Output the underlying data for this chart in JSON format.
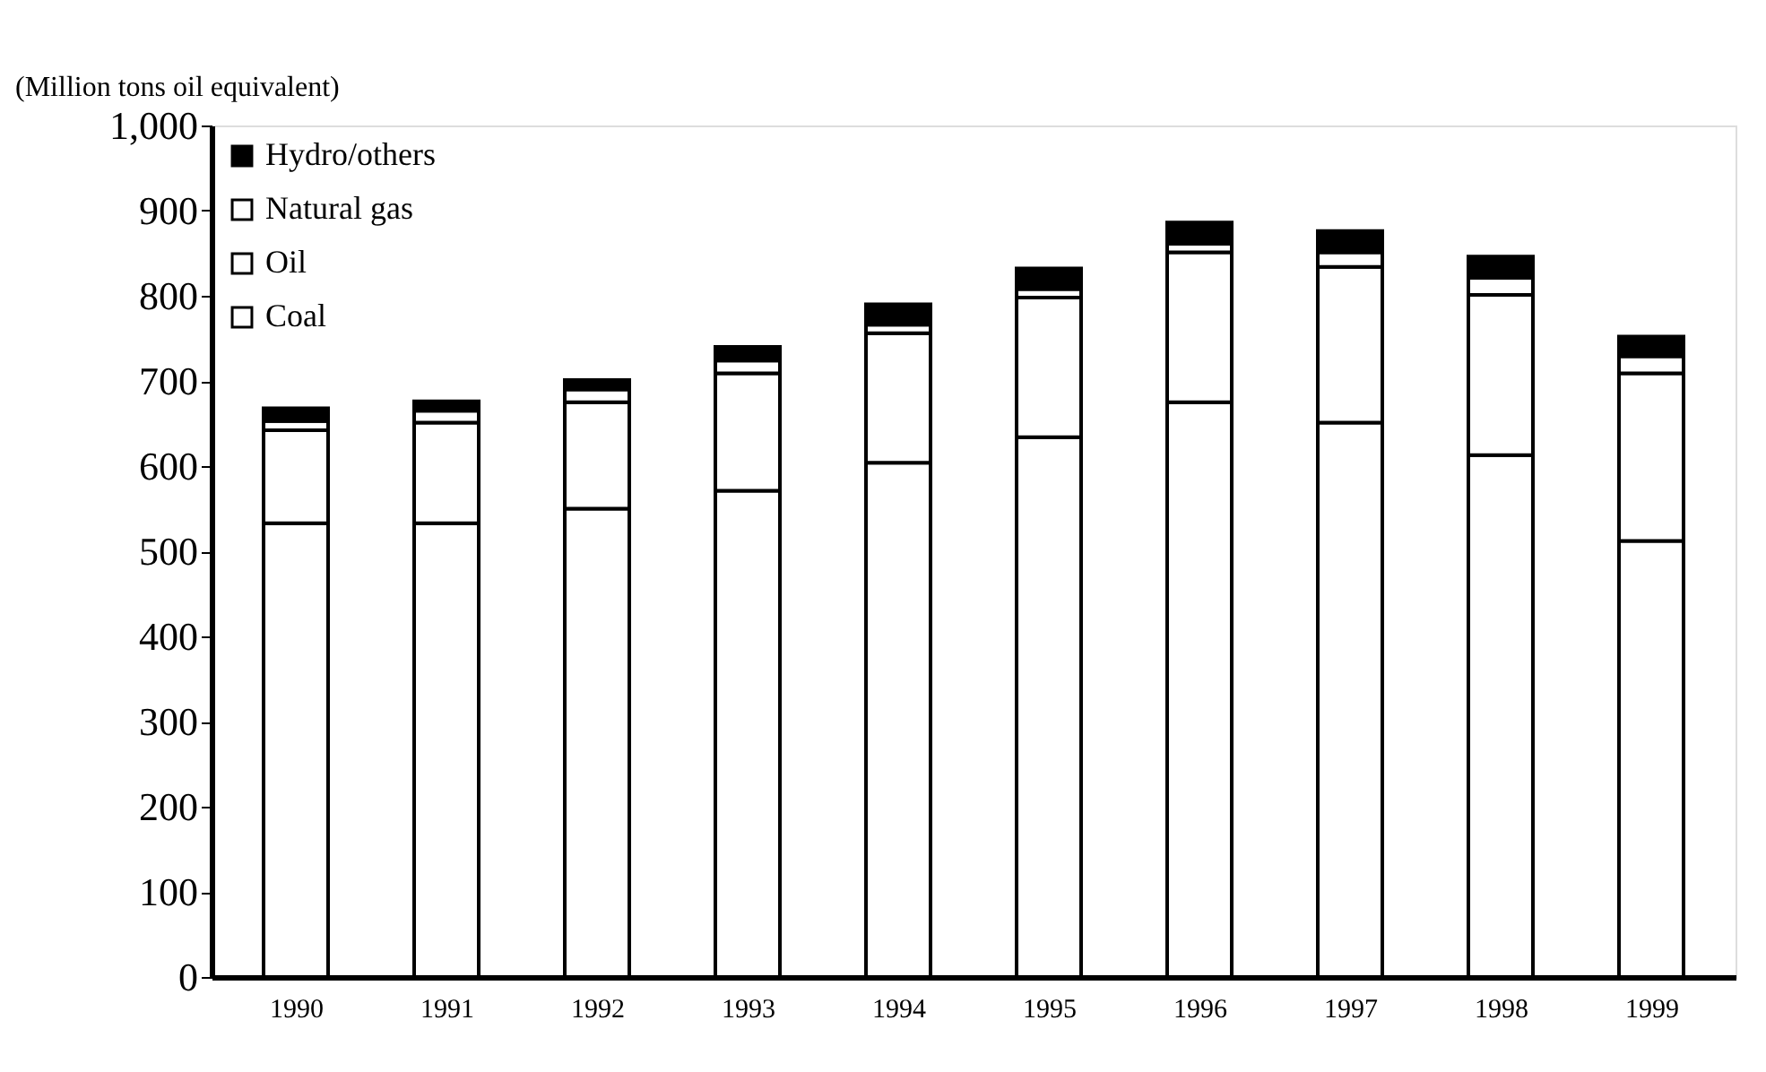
{
  "chart_data": {
    "type": "bar",
    "stacked": true,
    "ylabel": "(Million tons oil equivalent)",
    "categories": [
      "1990",
      "1991",
      "1992",
      "1993",
      "1994",
      "1995",
      "1996",
      "1997",
      "1998",
      "1999"
    ],
    "series": [
      {
        "name": "Coal",
        "color": "#ffffff",
        "values": [
          533,
          533,
          550,
          571,
          604,
          634,
          675,
          651,
          613,
          512
        ]
      },
      {
        "name": "Oil",
        "color": "#ffffff",
        "values": [
          109,
          118,
          125,
          138,
          152,
          164,
          176,
          183,
          188,
          197
        ]
      },
      {
        "name": "Natural gas",
        "color": "#ffffff",
        "values": [
          11,
          14,
          15,
          15,
          10,
          10,
          10,
          17,
          20,
          20
        ]
      },
      {
        "name": "Hydro/others",
        "color": "#000000",
        "values": [
          15,
          11,
          11,
          16,
          24,
          24,
          25,
          25,
          25,
          23
        ]
      }
    ],
    "ylim": [
      0,
      1000
    ],
    "yticks": [
      0,
      100,
      200,
      300,
      400,
      500,
      600,
      700,
      800,
      900,
      {
        "value": 1000,
        "label": "1,000"
      }
    ],
    "grid": false,
    "legend": "top left"
  }
}
